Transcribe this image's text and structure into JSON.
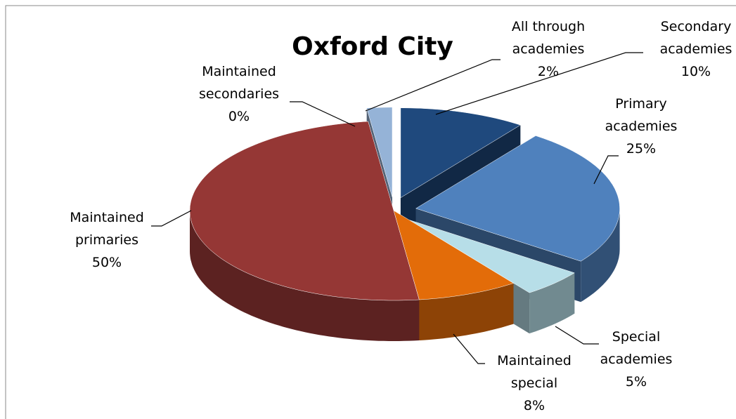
{
  "chart_data": {
    "type": "pie",
    "title": "Oxford City",
    "categories": [
      "Secondary academies",
      "Primary academies",
      "Special academies",
      "Maintained special",
      "Maintained primaries",
      "Maintained secondaries",
      "All through academies"
    ],
    "values": [
      10,
      25,
      5,
      8,
      50,
      0,
      2
    ],
    "value_labels": [
      "10%",
      "25%",
      "5%",
      "8%",
      "50%",
      "0%",
      "2%"
    ],
    "colors": [
      "#1F497D",
      "#4F81BD",
      "#B7DEE8",
      "#E36C09",
      "#953735",
      "#8064A2",
      "#95B3D7"
    ],
    "exploded": [
      true,
      true,
      true,
      false,
      false,
      false,
      true
    ]
  }
}
